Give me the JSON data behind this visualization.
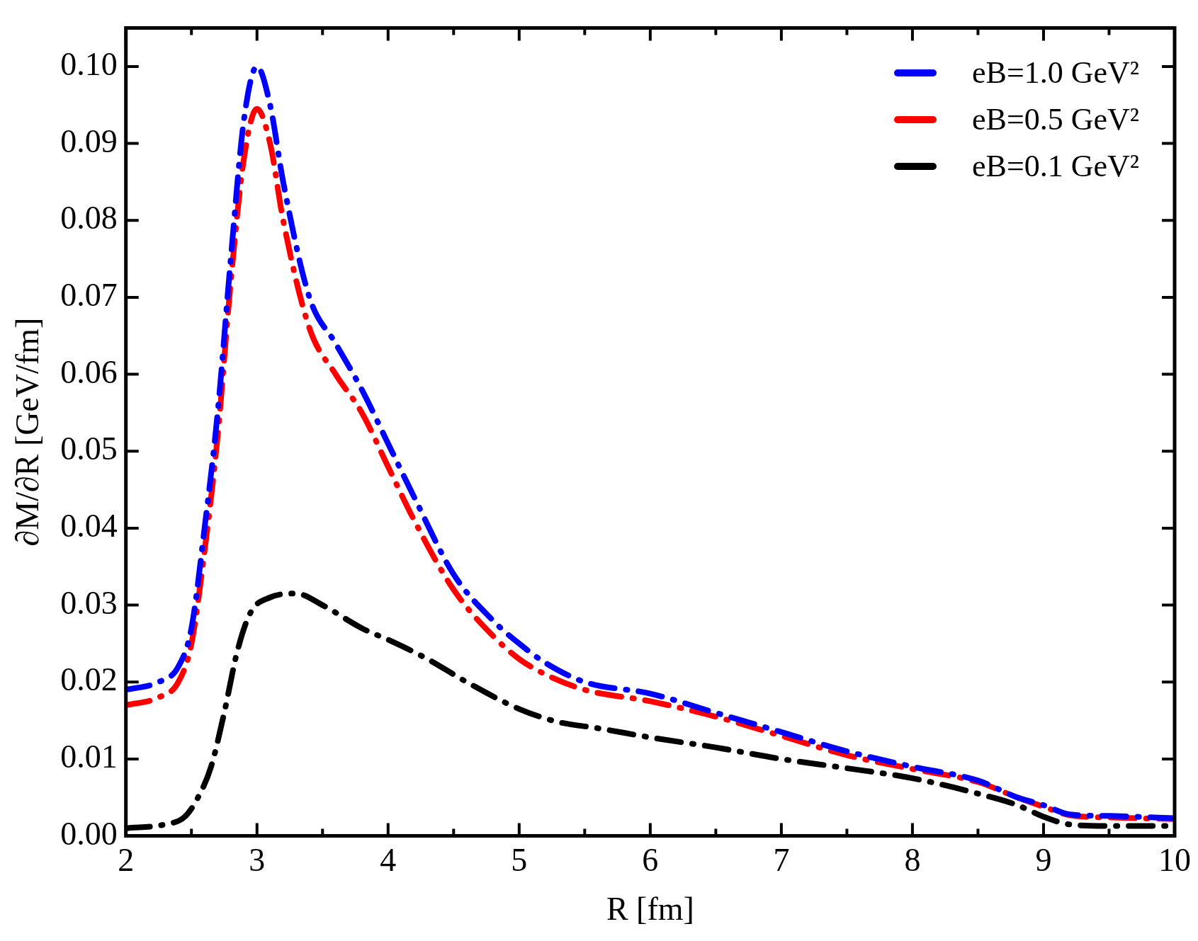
{
  "chart_data": {
    "type": "line",
    "xlabel": "R [fm]",
    "ylabel": "∂M/∂R [GeV/fm]",
    "xlim": [
      2,
      10
    ],
    "xticks": [
      2,
      {
        "value": 2.5,
        "label": null
      },
      3,
      {
        "value": 3.5,
        "label": null
      },
      4,
      {
        "value": 4.5,
        "label": null
      },
      5,
      {
        "value": 5.5,
        "label": null
      },
      6,
      {
        "value": 6.5,
        "label": null
      },
      7,
      {
        "value": 7.5,
        "label": null
      },
      8,
      {
        "value": 8.5,
        "label": null
      },
      9,
      {
        "value": 9.5,
        "label": null
      },
      10
    ],
    "ylim": [
      0,
      0.105
    ],
    "yticks": [
      {
        "value": 0,
        "label": "0.00"
      },
      {
        "value": 0.01,
        "label": "0.01"
      },
      {
        "value": 0.02,
        "label": "0.02"
      },
      {
        "value": 0.03,
        "label": "0.03"
      },
      {
        "value": 0.04,
        "label": "0.04"
      },
      {
        "value": 0.05,
        "label": "0.05"
      },
      {
        "value": 0.06,
        "label": "0.06"
      },
      {
        "value": 0.07,
        "label": "0.07"
      },
      {
        "value": 0.08,
        "label": "0.08"
      },
      {
        "value": 0.09,
        "label": "0.09"
      },
      {
        "value": 0.1,
        "label": "0.10"
      }
    ],
    "grid": false,
    "legend": "top right",
    "line_style": "dashed",
    "marker": "none",
    "series": [
      {
        "name": "eB=1.0 GeV²",
        "color": "#0000ff",
        "x": [
          2,
          2.25,
          2.4,
          2.5,
          2.6,
          2.7,
          2.8,
          2.9,
          3.0,
          3.1,
          3.2,
          3.4,
          3.6,
          3.8,
          4.0,
          4.2,
          4.5,
          4.8,
          5.0,
          5.2,
          5.5,
          6.0,
          6.5,
          7.0,
          7.5,
          8.0,
          8.5,
          8.8,
          9.0,
          9.2,
          9.5,
          10
        ],
        "values": [
          0.019,
          0.02,
          0.022,
          0.027,
          0.04,
          0.055,
          0.075,
          0.093,
          0.1,
          0.095,
          0.085,
          0.07,
          0.064,
          0.058,
          0.051,
          0.044,
          0.034,
          0.028,
          0.025,
          0.0225,
          0.02,
          0.0185,
          0.016,
          0.0135,
          0.011,
          0.009,
          0.0072,
          0.005,
          0.004,
          0.0028,
          0.0026,
          0.0023
        ]
      },
      {
        "name": "eB=0.5 GeV²",
        "color": "#ff0000",
        "x": [
          2,
          2.25,
          2.4,
          2.5,
          2.6,
          2.7,
          2.8,
          2.9,
          3.0,
          3.1,
          3.2,
          3.4,
          3.6,
          3.8,
          4.0,
          4.2,
          4.5,
          4.8,
          5.0,
          5.2,
          5.5,
          6.0,
          6.5,
          7.0,
          7.5,
          8.0,
          8.5,
          8.8,
          9.0,
          9.2,
          9.5,
          10
        ],
        "values": [
          0.017,
          0.018,
          0.02,
          0.025,
          0.037,
          0.052,
          0.072,
          0.088,
          0.0945,
          0.09,
          0.08,
          0.066,
          0.06,
          0.055,
          0.048,
          0.041,
          0.032,
          0.026,
          0.023,
          0.021,
          0.019,
          0.0175,
          0.0155,
          0.013,
          0.0105,
          0.0087,
          0.007,
          0.005,
          0.0038,
          0.0027,
          0.0024,
          0.0022
        ]
      },
      {
        "name": "eB=0.1 GeV²",
        "color": "#000000",
        "x": [
          2,
          2.3,
          2.45,
          2.55,
          2.65,
          2.75,
          2.85,
          2.95,
          3.1,
          3.3,
          3.5,
          3.8,
          4.0,
          4.3,
          4.6,
          5.0,
          5.3,
          5.6,
          6.0,
          6.5,
          7.0,
          7.5,
          8.0,
          8.5,
          8.8,
          9.0,
          9.2,
          9.5,
          10
        ],
        "values": [
          0.001,
          0.0015,
          0.0025,
          0.005,
          0.009,
          0.016,
          0.024,
          0.029,
          0.031,
          0.0315,
          0.03,
          0.027,
          0.0255,
          0.023,
          0.02,
          0.0165,
          0.0148,
          0.014,
          0.0128,
          0.0115,
          0.01,
          0.0088,
          0.0075,
          0.0055,
          0.004,
          0.0025,
          0.0015,
          0.0013,
          0.0013
        ]
      }
    ]
  }
}
